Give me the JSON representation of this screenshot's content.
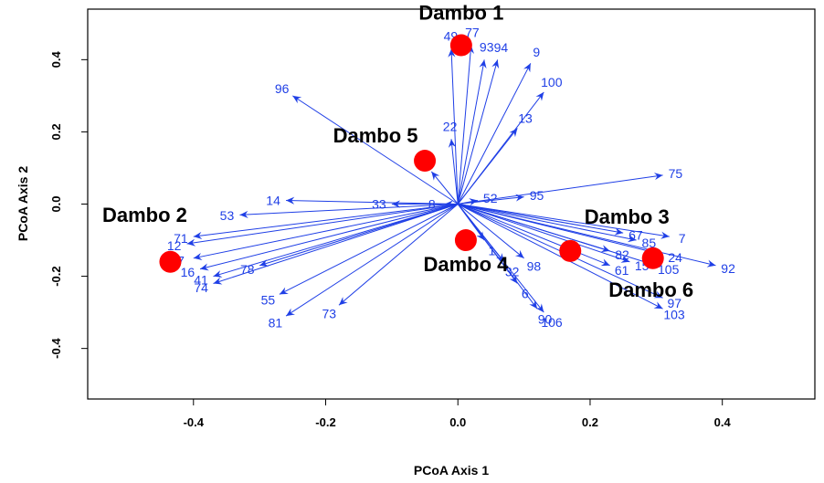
{
  "chart_data": {
    "type": "scatter",
    "title": "",
    "xlabel": "PCoA Axis 1",
    "ylabel": "PCoA Axis 2",
    "xlim": [
      -0.56,
      0.54
    ],
    "ylim": [
      -0.54,
      0.54
    ],
    "x_ticks": [
      -0.4,
      -0.2,
      0.0,
      0.2,
      0.4
    ],
    "x_tick_labels": [
      "-0.4",
      "-0.2",
      "0.0",
      "0.2",
      "0.4"
    ],
    "y_ticks": [
      -0.4,
      -0.2,
      0.0,
      0.2,
      0.4
    ],
    "y_tick_labels": [
      "-0.4",
      "-0.2",
      "0.0",
      "0.2",
      "0.4"
    ],
    "grid": false,
    "colors": {
      "sites": "#ff0000",
      "vectors": "#1f3fe6",
      "axes": "#000000"
    },
    "sites": [
      {
        "label": "Dambo 1",
        "x": 0.005,
        "y": 0.44
      },
      {
        "label": "Dambo 2",
        "x": -0.435,
        "y": -0.16
      },
      {
        "label": "Dambo 3",
        "x": 0.17,
        "y": -0.13
      },
      {
        "label": "Dambo 4",
        "x": 0.012,
        "y": -0.1
      },
      {
        "label": "Dambo 5",
        "x": -0.05,
        "y": 0.12
      },
      {
        "label": "Dambo 6",
        "x": 0.295,
        "y": -0.15
      }
    ],
    "vectors": [
      {
        "label": "49",
        "x": -0.01,
        "y": 0.43
      },
      {
        "label": "77",
        "x": 0.02,
        "y": 0.44
      },
      {
        "label": "93",
        "x": 0.04,
        "y": 0.4
      },
      {
        "label": "94",
        "x": 0.06,
        "y": 0.4
      },
      {
        "label": "9",
        "x": 0.11,
        "y": 0.39
      },
      {
        "label": "100",
        "x": 0.13,
        "y": 0.31
      },
      {
        "label": "13",
        "x": 0.09,
        "y": 0.21
      },
      {
        "label": "96",
        "x": -0.25,
        "y": 0.3
      },
      {
        "label": "22",
        "x": -0.01,
        "y": 0.18
      },
      {
        "label": "19",
        "x": -0.04,
        "y": 0.09
      },
      {
        "label": "75",
        "x": 0.31,
        "y": 0.08
      },
      {
        "label": "95",
        "x": 0.1,
        "y": 0.02
      },
      {
        "label": "52",
        "x": 0.03,
        "y": 0.01
      },
      {
        "label": "14",
        "x": -0.26,
        "y": 0.01
      },
      {
        "label": "53",
        "x": -0.33,
        "y": -0.03
      },
      {
        "label": "33",
        "x": -0.1,
        "y": 0.0
      },
      {
        "label": "8",
        "x": -0.02,
        "y": 0.0
      },
      {
        "label": "71",
        "x": -0.4,
        "y": -0.09
      },
      {
        "label": "12",
        "x": -0.41,
        "y": -0.11
      },
      {
        "label": "7",
        "x": -0.4,
        "y": -0.15
      },
      {
        "label": "16",
        "x": -0.39,
        "y": -0.18
      },
      {
        "label": "41",
        "x": -0.37,
        "y": -0.2
      },
      {
        "label": "74",
        "x": -0.37,
        "y": -0.22
      },
      {
        "label": "78",
        "x": -0.3,
        "y": -0.17
      },
      {
        "label": "55",
        "x": -0.27,
        "y": -0.25
      },
      {
        "label": "81",
        "x": -0.26,
        "y": -0.31
      },
      {
        "label": "73",
        "x": -0.18,
        "y": -0.28
      },
      {
        "label": "1",
        "x": 0.04,
        "y": -0.1
      },
      {
        "label": "32",
        "x": 0.07,
        "y": -0.16
      },
      {
        "label": "98",
        "x": 0.1,
        "y": -0.15
      },
      {
        "label": "6",
        "x": 0.09,
        "y": -0.22
      },
      {
        "label": "90",
        "x": 0.12,
        "y": -0.29
      },
      {
        "label": "106",
        "x": 0.13,
        "y": -0.3
      },
      {
        "label": "67",
        "x": 0.25,
        "y": -0.08
      },
      {
        "label": "85",
        "x": 0.27,
        "y": -0.1
      },
      {
        "label": "7",
        "x": 0.32,
        "y": -0.09
      },
      {
        "label": "82",
        "x": 0.23,
        "y": -0.13
      },
      {
        "label": "61",
        "x": 0.23,
        "y": -0.17
      },
      {
        "label": "15",
        "x": 0.26,
        "y": -0.16
      },
      {
        "label": "105",
        "x": 0.3,
        "y": -0.17
      },
      {
        "label": "24",
        "x": 0.31,
        "y": -0.14
      },
      {
        "label": "92",
        "x": 0.39,
        "y": -0.17
      },
      {
        "label": "97",
        "x": 0.31,
        "y": -0.26
      },
      {
        "label": "103",
        "x": 0.31,
        "y": -0.29
      }
    ]
  }
}
